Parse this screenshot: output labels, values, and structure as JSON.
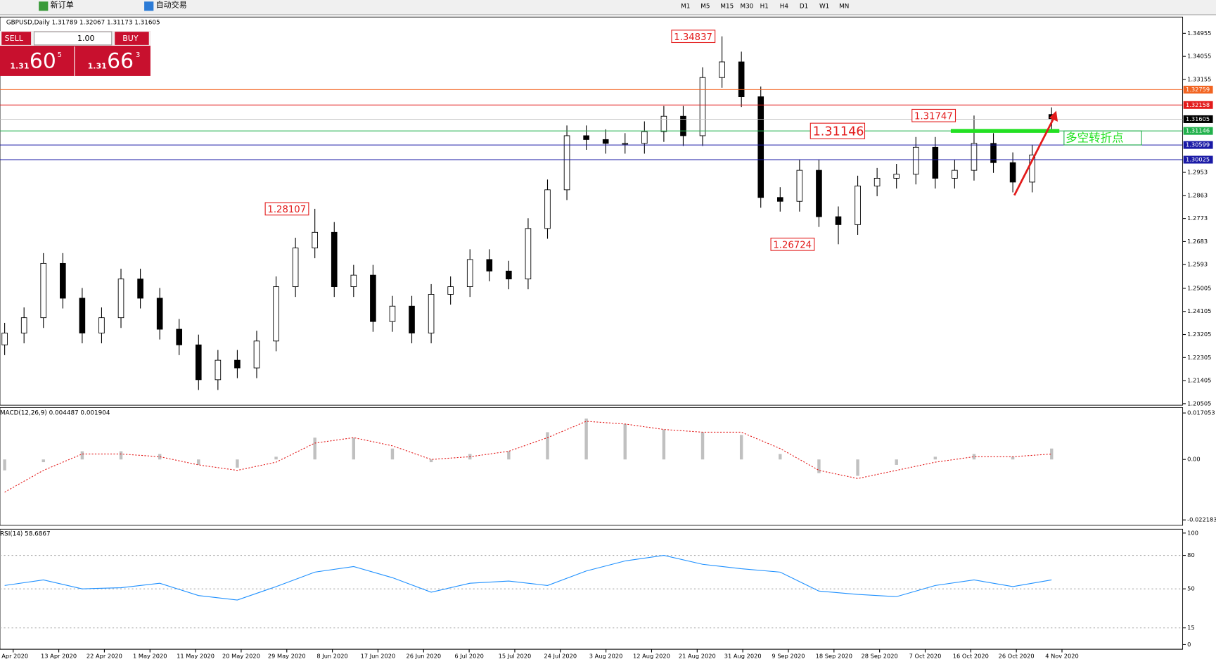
{
  "toolbar": {
    "new_order": "新订单",
    "auto_trading": "自动交易",
    "timeframes": [
      "M1",
      "M5",
      "M15",
      "M30",
      "H1",
      "H4",
      "D1",
      "W1",
      "MN"
    ]
  },
  "trade_panel": {
    "sell": "SELL",
    "buy": "BUY",
    "lots": "1.00",
    "sell_big": "1.31",
    "sell_pips": "60",
    "sell_frac": "5",
    "buy_big": "1.31",
    "buy_pips": "66",
    "buy_frac": "3"
  },
  "chart_data": [
    {
      "type": "candlestick",
      "header": "GBPUSD,Daily  1.31789 1.32067 1.31173 1.31605",
      "open": [
        1.228,
        1.2326,
        1.2386,
        1.2598,
        1.2462,
        1.2326,
        1.2386,
        1.2537,
        1.2462,
        1.2341,
        1.228,
        1.2144,
        1.222,
        1.219,
        1.2295,
        1.2507,
        1.2658,
        1.2719,
        1.2507,
        1.2552,
        1.2371,
        1.2431,
        1.2326,
        1.2477,
        1.2507,
        1.2613,
        1.2568,
        1.2537,
        1.2734,
        1.2885,
        1.3096,
        1.3081,
        1.3066,
        1.3066,
        1.3112,
        1.3172,
        1.3096,
        1.3323,
        1.3384,
        1.3248,
        1.2855,
        1.284,
        1.2961,
        1.278,
        1.2749,
        1.29,
        1.293,
        1.2946,
        1.3051,
        1.293,
        1.2961,
        1.3066,
        1.2991,
        1.2915,
        1.31789
      ],
      "high": [
        1.2366,
        1.2426,
        1.2638,
        1.2638,
        1.2502,
        1.2426,
        1.2577,
        1.2577,
        1.2502,
        1.2381,
        1.232,
        1.226,
        1.226,
        1.2335,
        1.2547,
        1.2698,
        1.28107,
        1.2759,
        1.2592,
        1.2592,
        1.2471,
        1.2471,
        1.2517,
        1.2547,
        1.2653,
        1.2653,
        1.2608,
        1.2774,
        1.2925,
        1.3136,
        1.3136,
        1.3121,
        1.3106,
        1.3152,
        1.3212,
        1.3212,
        1.3363,
        1.34837,
        1.3424,
        1.3288,
        1.2895,
        1.3001,
        1.3001,
        1.282,
        1.294,
        1.297,
        1.2986,
        1.3091,
        1.3091,
        1.3001,
        1.31747,
        1.3106,
        1.3031,
        1.3061,
        1.32067
      ],
      "low": [
        1.224,
        1.2286,
        1.2346,
        1.2422,
        1.2286,
        1.2286,
        1.2346,
        1.2422,
        1.2301,
        1.224,
        1.2104,
        1.2104,
        1.215,
        1.215,
        1.2255,
        1.2467,
        1.2618,
        1.2467,
        1.2467,
        1.2331,
        1.2331,
        1.2286,
        1.2286,
        1.2437,
        1.2467,
        1.2528,
        1.2497,
        1.2497,
        1.2694,
        1.2845,
        1.3041,
        1.3026,
        1.3026,
        1.3026,
        1.3072,
        1.3056,
        1.3056,
        1.3283,
        1.3208,
        1.2815,
        1.28,
        1.28,
        1.274,
        1.26724,
        1.2709,
        1.286,
        1.289,
        1.2906,
        1.289,
        1.289,
        1.2921,
        1.2951,
        1.2875,
        1.2875,
        1.31173
      ],
      "close": [
        1.2326,
        1.2386,
        1.2598,
        1.2462,
        1.2326,
        1.2386,
        1.2537,
        1.2462,
        1.2341,
        1.228,
        1.2144,
        1.222,
        1.219,
        1.2295,
        1.2507,
        1.2658,
        1.2719,
        1.2507,
        1.2552,
        1.2371,
        1.2431,
        1.2326,
        1.2477,
        1.2507,
        1.2613,
        1.2568,
        1.2537,
        1.2734,
        1.2885,
        1.3096,
        1.3081,
        1.3066,
        1.3066,
        1.3112,
        1.3172,
        1.3096,
        1.3323,
        1.3384,
        1.3248,
        1.2855,
        1.284,
        1.2961,
        1.278,
        1.2749,
        1.29,
        1.293,
        1.2946,
        1.3051,
        1.293,
        1.2961,
        1.3066,
        1.2991,
        1.2915,
        1.3021,
        1.31605
      ],
      "ylim": [
        1.20445,
        1.3559
      ],
      "yticks": [
        1.34955,
        1.34055,
        1.33155,
        1.2953,
        1.2863,
        1.2773,
        1.2683,
        1.2593,
        1.25005,
        1.24105,
        1.23205,
        1.22305,
        1.21405,
        1.20505
      ],
      "levels": [
        {
          "value": 1.32759,
          "color": "#f26522"
        },
        {
          "value": 1.32158,
          "color": "#e31b1b"
        },
        {
          "value": 1.31605,
          "color": "#000000"
        },
        {
          "value": 1.31146,
          "color": "#22b14c"
        },
        {
          "value": 1.30599,
          "color": "#1a1aa6"
        },
        {
          "value": 1.30025,
          "color": "#1a1aa6"
        }
      ],
      "annotations": [
        1.34837,
        1.28107,
        1.26724,
        1.31747,
        1.31146
      ],
      "pivot_note": "多空转折点",
      "x_labels": [
        "Apr 2020",
        "13 Apr 2020",
        "22 Apr 2020",
        "1 May 2020",
        "11 May 2020",
        "20 May 2020",
        "29 May 2020",
        "8 Jun 2020",
        "17 Jun 2020",
        "26 Jun 2020",
        "6 Jul 2020",
        "15 Jul 2020",
        "24 Jul 2020",
        "3 Aug 2020",
        "12 Aug 2020",
        "21 Aug 2020",
        "31 Aug 2020",
        "9 Sep 2020",
        "18 Sep 2020",
        "28 Sep 2020",
        "7 Oct 2020",
        "16 Oct 2020",
        "26 Oct 2020",
        "4 Nov 2020"
      ]
    },
    {
      "type": "macd",
      "header": "MACD(12,26,9) 0.004487 0.001904",
      "histogram": [
        -0.004,
        -0.001,
        0.003,
        0.003,
        0.002,
        -0.002,
        -0.003,
        0.001,
        0.008,
        0.008,
        0.004,
        -0.001,
        0.002,
        0.003,
        0.01,
        0.015,
        0.013,
        0.011,
        0.01,
        0.009,
        0.002,
        -0.005,
        -0.006,
        -0.002,
        0.001,
        0.002,
        0.001,
        0.004
      ],
      "signal": [
        -0.012,
        -0.004,
        0.002,
        0.002,
        0.001,
        -0.002,
        -0.004,
        -0.001,
        0.006,
        0.008,
        0.005,
        0.0,
        0.001,
        0.003,
        0.008,
        0.014,
        0.013,
        0.011,
        0.01,
        0.01,
        0.004,
        -0.004,
        -0.007,
        -0.004,
        -0.001,
        0.001,
        0.001,
        0.002
      ],
      "ylim": [
        -0.024161,
        0.019043
      ],
      "yticks": [
        0.017053,
        {
          "value": 0,
          "label": "0.00"
        },
        -0.022183
      ]
    },
    {
      "type": "rsi",
      "header": "RSI(14) 58.6867",
      "values": [
        53,
        58,
        50,
        51,
        55,
        44,
        40,
        52,
        65,
        70,
        60,
        47,
        55,
        57,
        53,
        66,
        75,
        80,
        72,
        68,
        65,
        48,
        45,
        43,
        53,
        58,
        52,
        58
      ],
      "ylim": [
        -4.17,
        103.47
      ],
      "yticks": [
        100,
        80,
        50,
        15,
        0
      ]
    }
  ]
}
